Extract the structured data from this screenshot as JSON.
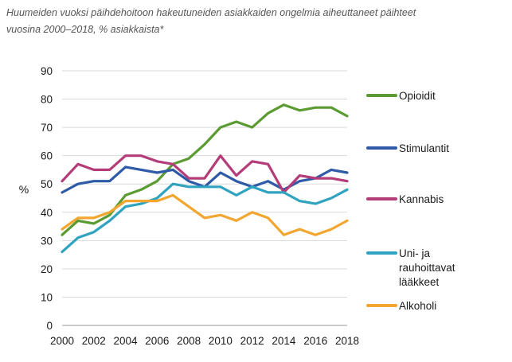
{
  "caption": {
    "line1": "Huumeiden vuoksi päihdehoitoon hakeutuneiden asiakkaiden ongelmia aiheuttaneet päihteet",
    "line2": "vuosina 2000–2018, % asiakkaista*"
  },
  "chart_data": {
    "type": "line",
    "title": "",
    "xlabel": "",
    "ylabel": "%",
    "xlim": [
      2000,
      2018
    ],
    "ylim": [
      0,
      90
    ],
    "x_ticks": [
      2000,
      2002,
      2004,
      2006,
      2008,
      2010,
      2012,
      2014,
      2016,
      2018
    ],
    "y_ticks": [
      0,
      10,
      20,
      30,
      40,
      50,
      60,
      70,
      80,
      90
    ],
    "grid": "horizontal",
    "legend_position": "right",
    "x": [
      2000,
      2001,
      2002,
      2003,
      2004,
      2005,
      2006,
      2007,
      2008,
      2009,
      2010,
      2011,
      2012,
      2013,
      2014,
      2015,
      2016,
      2017,
      2018
    ],
    "series": [
      {
        "name": "Opioidit",
        "legend_lines": [
          "Opioidit"
        ],
        "color": "#5a9b32",
        "values": [
          32,
          37,
          36,
          39,
          46,
          48,
          51,
          57,
          59,
          64,
          70,
          72,
          70,
          75,
          78,
          76,
          77,
          77,
          74
        ]
      },
      {
        "name": "Stimulantit",
        "legend_lines": [
          "Stimulantit"
        ],
        "color": "#2e5aa8",
        "values": [
          47,
          50,
          51,
          51,
          56,
          55,
          54,
          55,
          51,
          49,
          54,
          51,
          49,
          51,
          48,
          51,
          52,
          55,
          54
        ]
      },
      {
        "name": "Kannabis",
        "legend_lines": [
          "Kannabis"
        ],
        "color": "#b43c78",
        "values": [
          51,
          57,
          55,
          55,
          60,
          60,
          58,
          57,
          52,
          52,
          60,
          53,
          58,
          57,
          47,
          53,
          52,
          52,
          51
        ]
      },
      {
        "name": "Uni- ja rauhoittavat lääkkeet",
        "legend_lines": [
          "Uni- ja",
          "rauhoittavat",
          "lääkkeet"
        ],
        "color": "#2fa3bf",
        "values": [
          26,
          31,
          33,
          37,
          42,
          43,
          45,
          50,
          49,
          49,
          49,
          46,
          49,
          47,
          47,
          44,
          43,
          45,
          48
        ]
      },
      {
        "name": "Alkoholi",
        "legend_lines": [
          "Alkoholi"
        ],
        "color": "#f2a630",
        "values": [
          34,
          38,
          38,
          40,
          44,
          44,
          44,
          46,
          42,
          38,
          39,
          37,
          40,
          38,
          32,
          34,
          32,
          34,
          37
        ]
      }
    ]
  }
}
